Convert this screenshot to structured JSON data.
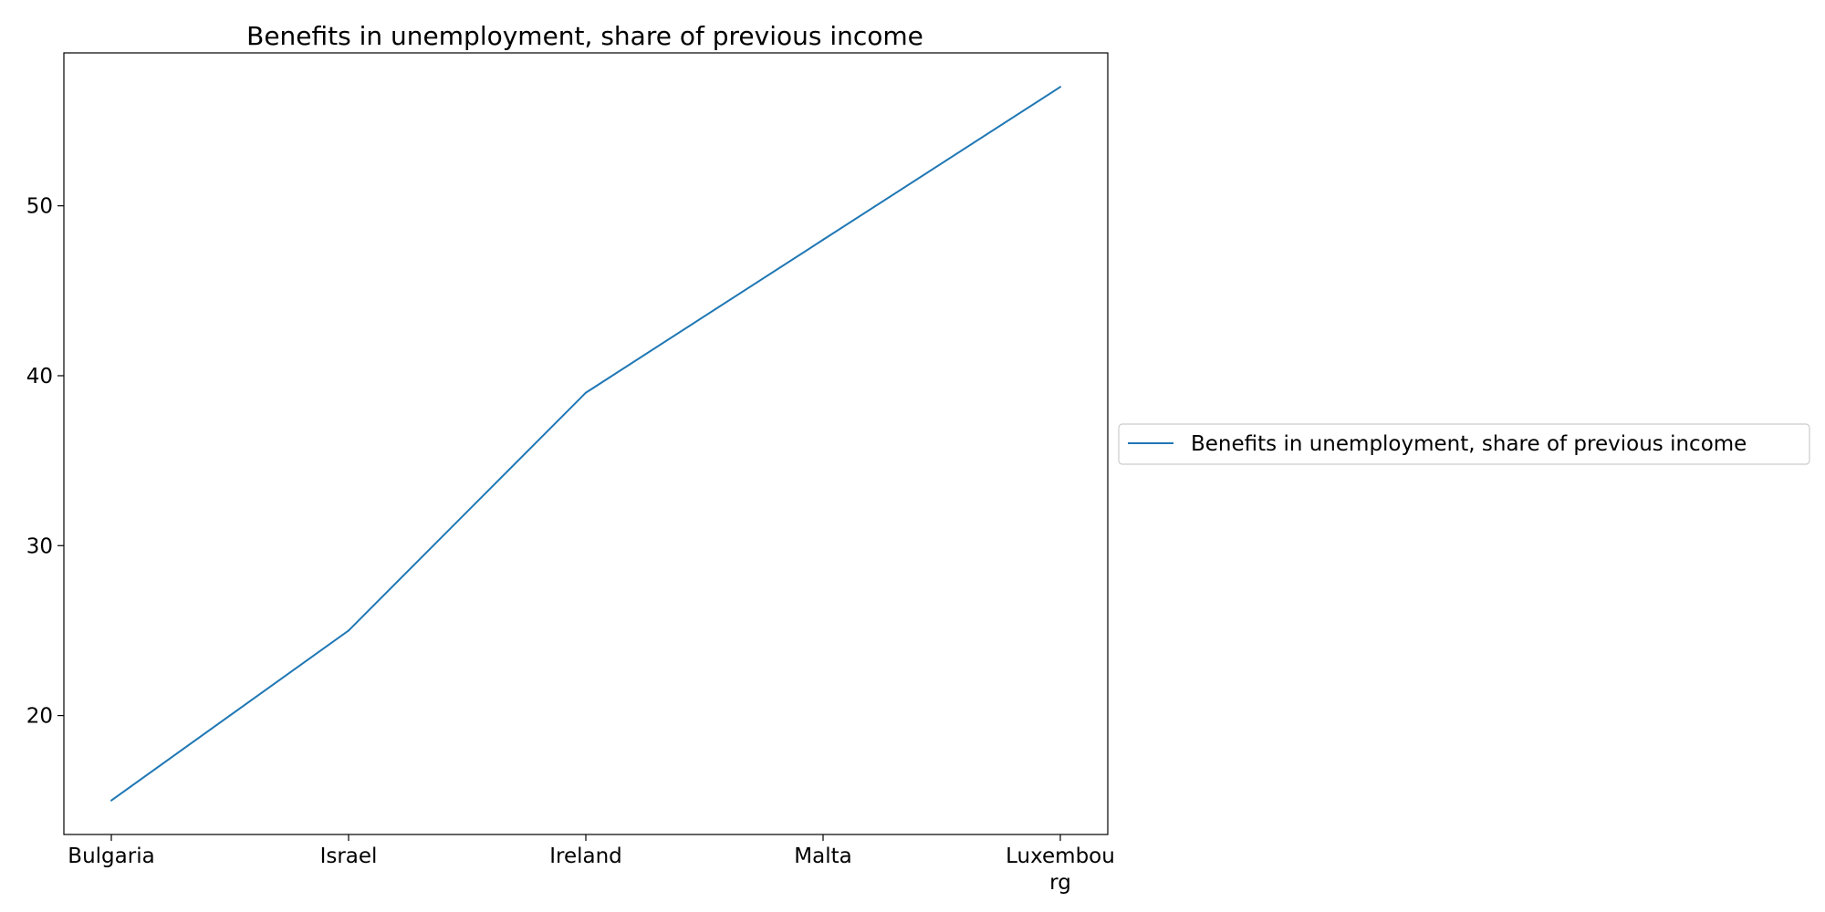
{
  "chart_data": {
    "type": "line",
    "title": "Benefits in unemployment, share of previous income",
    "xlabel": "",
    "ylabel": "",
    "categories": [
      "Bulgaria",
      "Israel",
      "Ireland",
      "Malta",
      "Luxembourg"
    ],
    "category_tick_labels": [
      [
        "Bulgaria"
      ],
      [
        "Israel"
      ],
      [
        "Ireland"
      ],
      [
        "Malta"
      ],
      [
        "Luxembou",
        "rg"
      ]
    ],
    "series": [
      {
        "name": "Benefits in unemployment, share of previous income",
        "values": [
          15,
          25,
          39,
          48,
          57
        ],
        "color": "#1f77b4"
      }
    ],
    "ylim": [
      13,
      59
    ],
    "yticks": [
      20,
      30,
      40,
      50
    ],
    "grid": false,
    "legend_position": "center-right outside"
  }
}
